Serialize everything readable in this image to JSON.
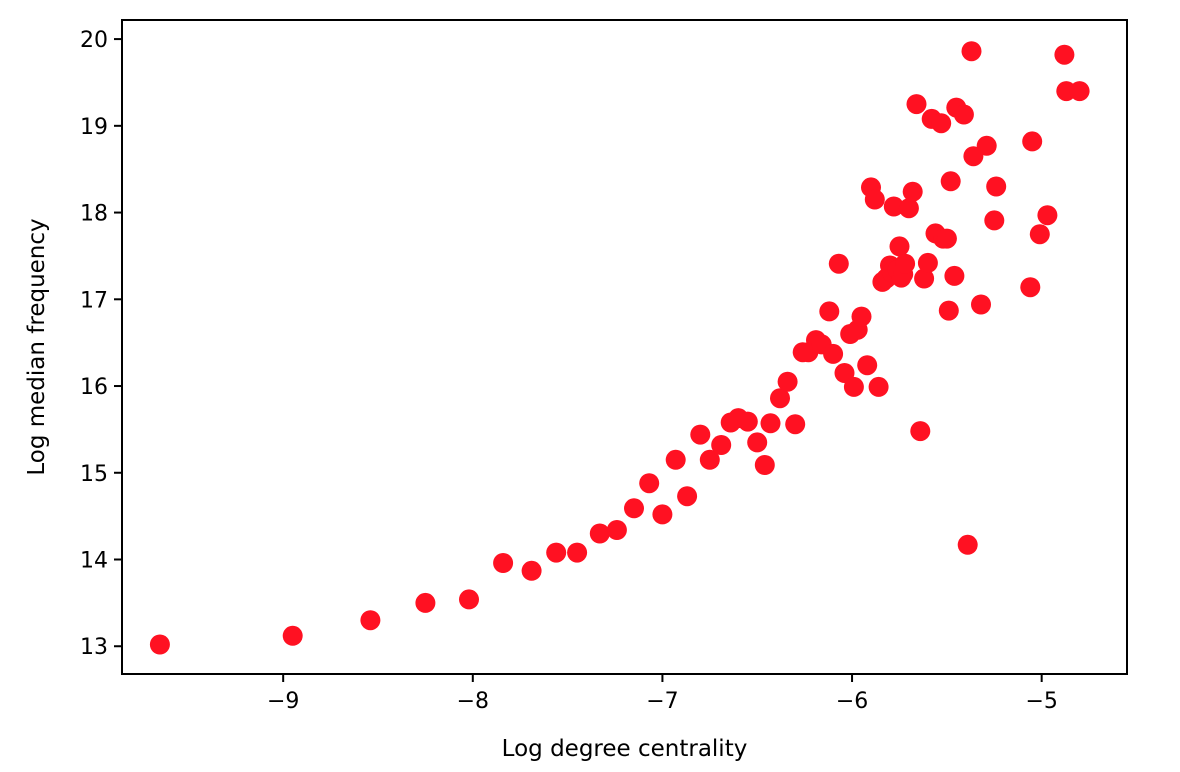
{
  "chart_data": {
    "type": "scatter",
    "title": "",
    "xlabel": "Log degree centrality",
    "ylabel": "Log median frequency",
    "xlim": [
      -9.85,
      -4.55
    ],
    "ylim": [
      12.68,
      20.22
    ],
    "xticks": [
      -9,
      -8,
      -7,
      -6,
      -5
    ],
    "xtick_labels": [
      "−9",
      "−8",
      "−7",
      "−6",
      "−5"
    ],
    "yticks": [
      13,
      14,
      15,
      16,
      17,
      18,
      19,
      20
    ],
    "ytick_labels": [
      "13",
      "14",
      "15",
      "16",
      "17",
      "18",
      "19",
      "20"
    ],
    "grid": false,
    "marker_color": "#ff1122",
    "series": [
      {
        "x": [
          -9.65,
          -8.95,
          -8.54,
          -8.25,
          -8.02,
          -7.84,
          -7.69,
          -7.56,
          -7.45,
          -7.33,
          -7.24,
          -7.15,
          -7.07,
          -7.0,
          -6.93,
          -6.87,
          -6.8,
          -6.75,
          -6.69,
          -6.64,
          -6.6,
          -6.55,
          -6.5,
          -6.46,
          -6.43,
          -6.38,
          -6.34,
          -6.3,
          -6.26,
          -6.23,
          -6.19,
          -6.16,
          -6.12,
          -6.1,
          -6.07,
          -6.04,
          -6.01,
          -5.99,
          -5.97,
          -5.95,
          -5.92,
          -5.9,
          -5.88,
          -5.86,
          -5.84,
          -5.82,
          -5.8,
          -5.79,
          -5.78,
          -5.76,
          -5.75,
          -5.74,
          -5.73,
          -5.72,
          -5.7,
          -5.68,
          -5.66,
          -5.64,
          -5.62,
          -5.6,
          -5.58,
          -5.56,
          -5.53,
          -5.52,
          -5.5,
          -5.49,
          -5.48,
          -5.46,
          -5.45,
          -5.41,
          -5.39,
          -5.37,
          -5.36,
          -5.32,
          -5.29,
          -5.25,
          -5.24,
          -5.06,
          -5.05,
          -5.01,
          -4.97,
          -4.88,
          -4.87,
          -4.8
        ],
        "y": [
          13.02,
          13.12,
          13.3,
          13.5,
          13.54,
          13.96,
          13.87,
          14.08,
          14.08,
          14.3,
          14.34,
          14.59,
          14.88,
          14.52,
          15.15,
          14.73,
          15.44,
          15.15,
          15.32,
          15.58,
          15.63,
          15.59,
          15.35,
          15.09,
          15.57,
          15.86,
          16.05,
          15.56,
          16.39,
          16.39,
          16.53,
          16.48,
          16.86,
          16.37,
          17.41,
          16.15,
          16.6,
          15.99,
          16.65,
          16.8,
          16.24,
          18.29,
          18.15,
          15.99,
          17.2,
          17.24,
          17.39,
          17.31,
          18.07,
          17.34,
          17.61,
          17.25,
          17.29,
          17.41,
          18.05,
          18.24,
          19.25,
          15.48,
          17.24,
          17.42,
          19.08,
          17.76,
          19.03,
          17.7,
          17.7,
          16.87,
          18.36,
          17.27,
          19.21,
          19.13,
          14.17,
          19.86,
          18.65,
          16.94,
          18.77,
          17.91,
          18.3,
          17.14,
          18.82,
          17.75,
          17.97,
          19.82,
          19.4,
          19.4
        ]
      }
    ]
  }
}
